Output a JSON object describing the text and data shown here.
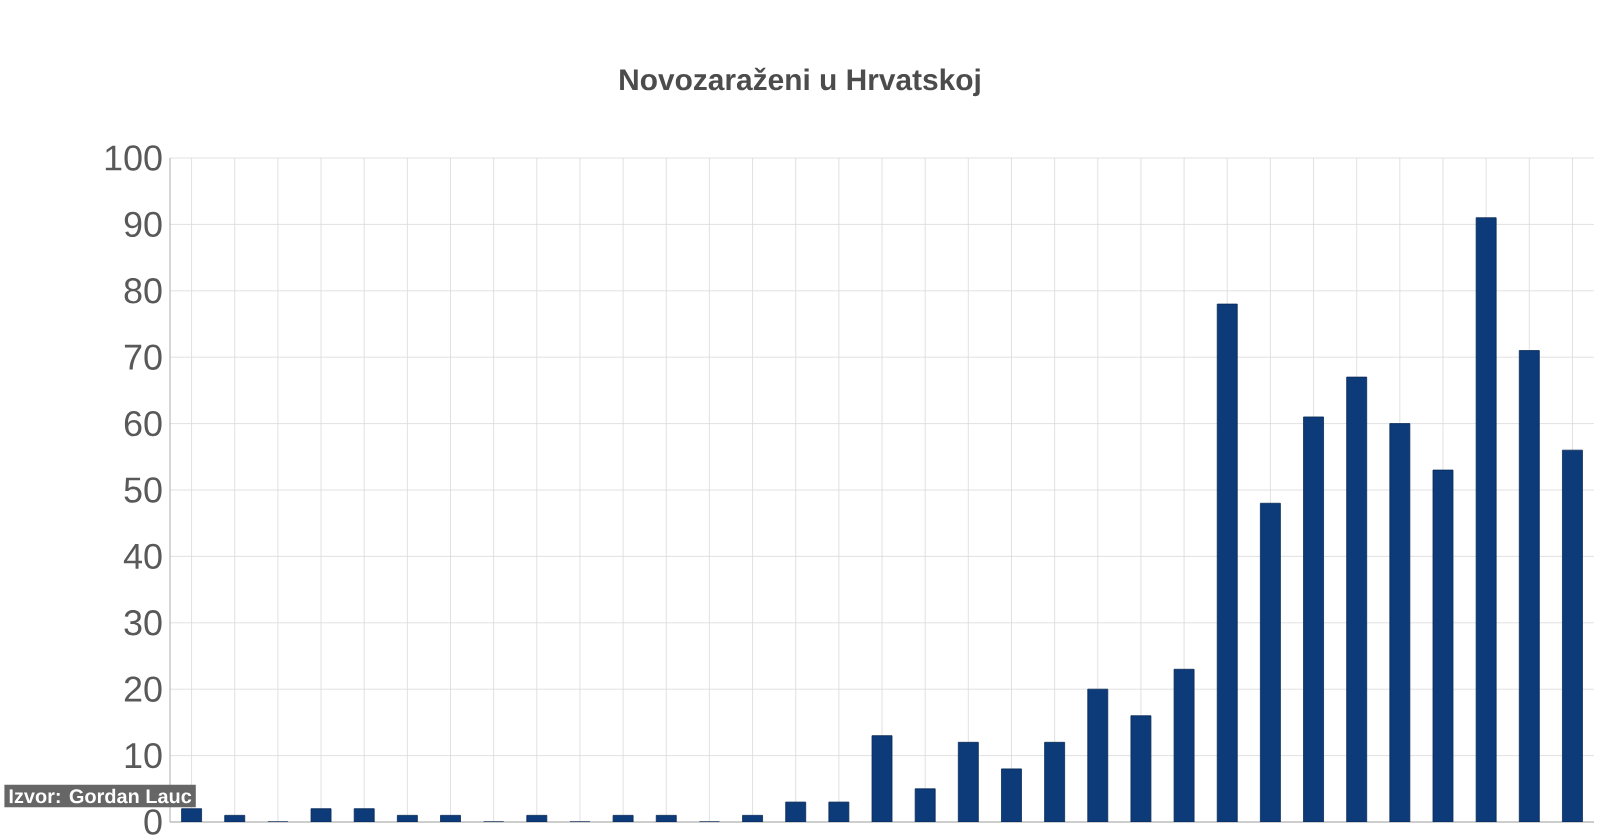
{
  "chart_data": {
    "type": "bar",
    "title": "Novozaraženi u Hrvatskoj",
    "categories": [
      null,
      null,
      null,
      null,
      null,
      null,
      null,
      null,
      null,
      null,
      null,
      null,
      null,
      null,
      null,
      null,
      null,
      null,
      null,
      null,
      null,
      null,
      null,
      null,
      null,
      null,
      null,
      null,
      null,
      null,
      null,
      null,
      null
    ],
    "values": [
      2,
      1,
      0,
      2,
      2,
      1,
      1,
      0,
      1,
      0,
      1,
      1,
      0,
      1,
      3,
      3,
      13,
      5,
      12,
      8,
      12,
      20,
      16,
      23,
      78,
      48,
      61,
      67,
      60,
      53,
      91,
      71,
      56
    ],
    "color": "#0d3b7a",
    "ylim": [
      0,
      100
    ],
    "yticks": [
      0,
      10,
      20,
      30,
      40,
      50,
      60,
      70,
      80,
      90,
      100
    ],
    "grid": true,
    "tick_labels": "y",
    "annotations": [
      "Izvor: Gordan Lauc"
    ]
  }
}
